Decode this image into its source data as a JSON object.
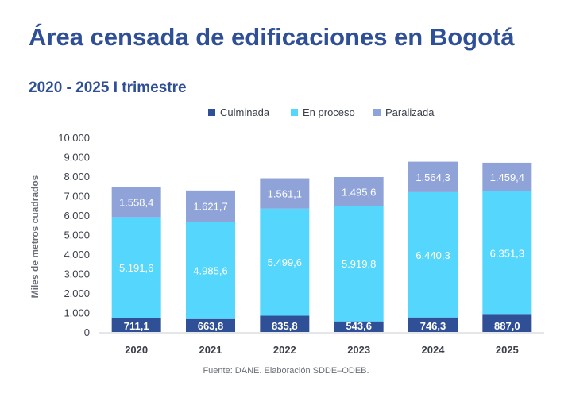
{
  "title": "Área censada de edificaciones en Bogotá",
  "subtitle": "2020 - 2025 I trimestre",
  "source": "Fuente: DANE. Elaboración SDDE–ODEB.",
  "legend": [
    {
      "name": "Culminada",
      "color": "#2f4f96"
    },
    {
      "name": "En proceso",
      "color": "#55d6fc"
    },
    {
      "name": "Paralizada",
      "color": "#8fa3d9"
    }
  ],
  "chart_data": {
    "type": "bar",
    "stacked": true,
    "categories": [
      "2020",
      "2021",
      "2022",
      "2023",
      "2024",
      "2025"
    ],
    "series": [
      {
        "name": "Culminada",
        "color": "#2f4f96",
        "values": [
          711.1,
          663.8,
          835.8,
          543.6,
          746.3,
          887.0
        ],
        "labels": [
          "711,1",
          "663,8",
          "835,8",
          "543,6",
          "746,3",
          "887,0"
        ]
      },
      {
        "name": "En proceso",
        "color": "#55d6fc",
        "values": [
          5191.6,
          4985.6,
          5499.6,
          5919.8,
          6440.3,
          6351.3
        ],
        "labels": [
          "5.191,6",
          "4.985,6",
          "5.499,6",
          "5.919,8",
          "6.440,3",
          "6.351,3"
        ]
      },
      {
        "name": "Paralizada",
        "color": "#8fa3d9",
        "values": [
          1558.4,
          1621.7,
          1561.1,
          1495.6,
          1564.3,
          1459.4
        ],
        "labels": [
          "1.558,4",
          "1.621,7",
          "1.561,1",
          "1.495,6",
          "1.564,3",
          "1.459,4"
        ]
      }
    ],
    "ylabel": "Miles de metros cuadrados",
    "ylim": [
      0,
      10000
    ],
    "yticks": [
      0,
      1000,
      2000,
      3000,
      4000,
      5000,
      6000,
      7000,
      8000,
      9000,
      10000
    ],
    "ytick_labels": [
      "0",
      "1.000",
      "2.000",
      "3.000",
      "4.000",
      "5.000",
      "6.000",
      "7.000",
      "8.000",
      "9.000",
      "10.000"
    ],
    "grid": false,
    "legend_position": "top-center"
  }
}
